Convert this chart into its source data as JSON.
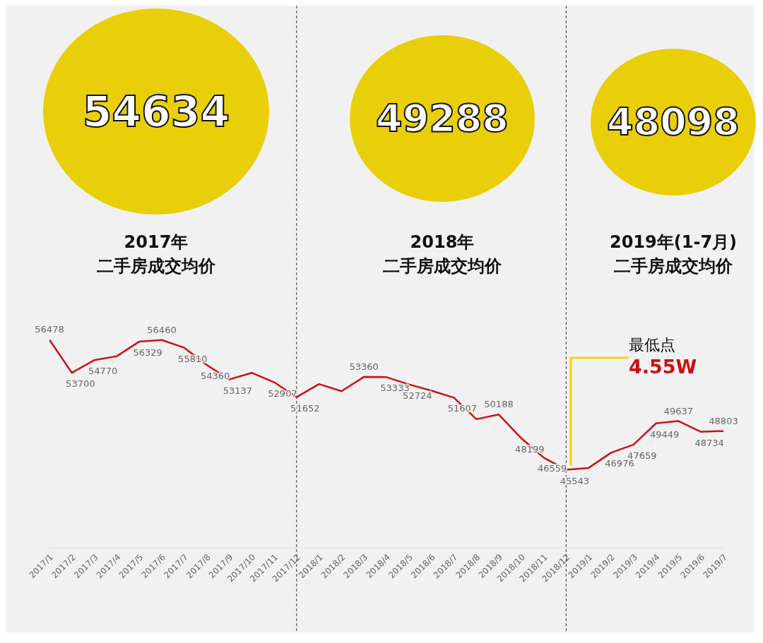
{
  "chart_data": {
    "type": "line",
    "categories": [
      "2017/1",
      "2017/2",
      "2017/3",
      "2017/4",
      "2017/5",
      "2017/6",
      "2017/7",
      "2017/8",
      "2017/9",
      "2017/10",
      "2017/11",
      "2017/12",
      "2018/1",
      "2018/2",
      "2018/3",
      "2018/4",
      "2018/5",
      "2018/6",
      "2018/7",
      "2018/8",
      "2018/9",
      "2018/10",
      "2018/11",
      "2018/12",
      "2019/1",
      "2019/2",
      "2019/3",
      "2019/4",
      "2019/5",
      "2019/6",
      "2019/7"
    ],
    "values": [
      56478,
      53700,
      54770,
      55100,
      56329,
      56460,
      55810,
      54360,
      53137,
      53700,
      52907,
      51652,
      52750,
      52150,
      53360,
      53333,
      52724,
      52200,
      51607,
      49800,
      50188,
      48199,
      46559,
      45543,
      45700,
      46976,
      47659,
      49449,
      49637,
      48734,
      48803
    ],
    "value_labels": [
      "56478",
      "53700",
      "54770",
      null,
      "56329",
      "56460",
      "55810",
      "54360",
      "53137",
      null,
      "52907",
      "51652",
      null,
      null,
      "53360",
      "53333",
      "52724",
      null,
      "51607",
      null,
      "50188",
      "48199",
      "46559",
      "45543",
      null,
      "46976",
      "47659",
      "49449",
      "49637",
      "48734",
      "48803"
    ],
    "color": "#cc1111",
    "marker": "none",
    "line_style": "solid",
    "grid": false,
    "tick_labels": "x",
    "ref_lines": [
      {
        "axis": "x",
        "value": "2017/12",
        "color": "#333333",
        "line_style": "dashed"
      },
      {
        "axis": "x",
        "value": "2018/12",
        "color": "#333333",
        "line_style": "dashed"
      }
    ],
    "annotations": [
      "54634",
      "49288",
      "48098",
      "2017年",
      "二手房成交均价",
      "2018年",
      "二手房成交均价",
      "2019年(1-7月)",
      "二手房成交均价",
      "最低点",
      "4.55W"
    ]
  }
}
